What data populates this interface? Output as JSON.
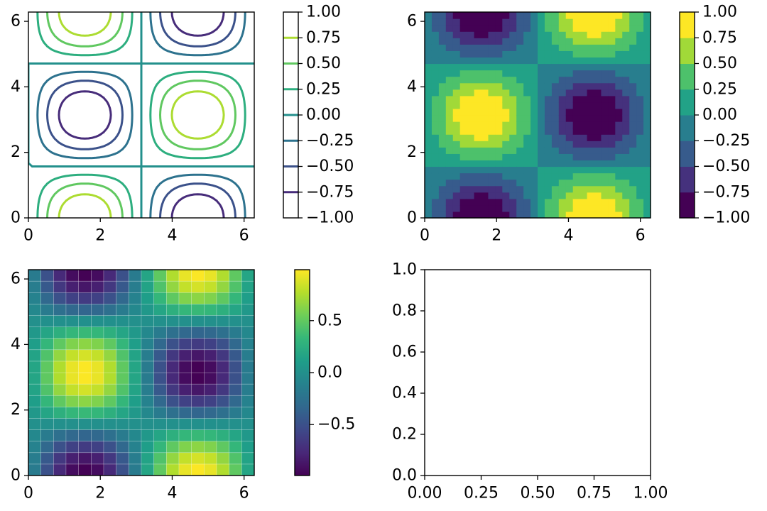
{
  "chart_data": [
    {
      "type": "contour",
      "title": "",
      "function": "sin(x)*cos(y)",
      "x": [
        0,
        0.349,
        0.698,
        1.047,
        1.396,
        1.745,
        2.094,
        2.443,
        2.793,
        3.142,
        3.491,
        3.84,
        4.189,
        4.538,
        4.887,
        5.236,
        5.585,
        5.934,
        6.283
      ],
      "y": [
        0,
        0.349,
        0.698,
        1.047,
        1.396,
        1.745,
        2.094,
        2.443,
        2.793,
        3.142,
        3.491,
        3.84,
        4.189,
        4.538,
        4.887,
        5.236,
        5.585,
        5.934,
        6.283
      ],
      "levels": [
        -1.0,
        -0.75,
        -0.5,
        -0.25,
        0.0,
        0.25,
        0.5,
        0.75,
        1.0
      ],
      "xlim": [
        0,
        6.283
      ],
      "ylim": [
        0,
        6.283
      ],
      "xticks": [
        "0",
        "2",
        "4",
        "6"
      ],
      "yticks": [
        "0",
        "2",
        "4",
        "6"
      ],
      "colorbar": {
        "ticks": [
          "1.00",
          "0.75",
          "0.50",
          "0.25",
          "0.00",
          "−0.25",
          "−0.50",
          "−0.75",
          "−1.00"
        ],
        "tick_values": [
          1.0,
          0.75,
          0.5,
          0.25,
          0.0,
          -0.25,
          -0.5,
          -0.75,
          -1.0
        ],
        "style": "lines"
      }
    },
    {
      "type": "contourf",
      "title": "",
      "function": "-sin(x)*cos(y)",
      "levels": [
        -1.0,
        -0.75,
        -0.5,
        -0.25,
        0.0,
        0.25,
        0.5,
        0.75,
        1.0
      ],
      "xlim": [
        0,
        6.283
      ],
      "ylim": [
        0,
        6.283
      ],
      "xticks": [
        "0",
        "2",
        "4",
        "6"
      ],
      "yticks": [
        "0",
        "2",
        "4",
        "6"
      ],
      "colorbar": {
        "ticks": [
          "1.00",
          "0.75",
          "0.50",
          "0.25",
          "0.00",
          "−0.25",
          "−0.50",
          "−0.75",
          "−1.00"
        ],
        "tick_values": [
          1.0,
          0.75,
          0.5,
          0.25,
          0.0,
          -0.25,
          -0.5,
          -0.75,
          -1.0
        ],
        "style": "filled"
      }
    },
    {
      "type": "heatmap",
      "title": "",
      "function": "-sin(x)*cos(y)",
      "grid_cells": 18,
      "xlim": [
        0,
        6.283
      ],
      "ylim": [
        0,
        6.283
      ],
      "xticks": [
        "0",
        "2",
        "4",
        "6"
      ],
      "yticks": [
        "0",
        "2",
        "4",
        "6"
      ],
      "colorbar": {
        "ticks": [
          "0.5",
          "0.0",
          "−0.5"
        ],
        "tick_values": [
          0.5,
          0.0,
          -0.5
        ],
        "range": [
          -0.99,
          0.99
        ],
        "style": "continuous"
      }
    },
    {
      "type": "empty",
      "title": "",
      "xlim": [
        0,
        1
      ],
      "ylim": [
        0,
        1
      ],
      "xticks": [
        "0.00",
        "0.25",
        "0.50",
        "0.75",
        "1.00"
      ],
      "yticks": [
        "0.0",
        "0.2",
        "0.4",
        "0.6",
        "0.8",
        "1.0"
      ]
    }
  ],
  "colors": {
    "viridis": [
      "#440154",
      "#482878",
      "#3e4989",
      "#31688e",
      "#26828e",
      "#1f9e89",
      "#35b779",
      "#6ece58",
      "#b5de2b",
      "#fde725"
    ]
  }
}
